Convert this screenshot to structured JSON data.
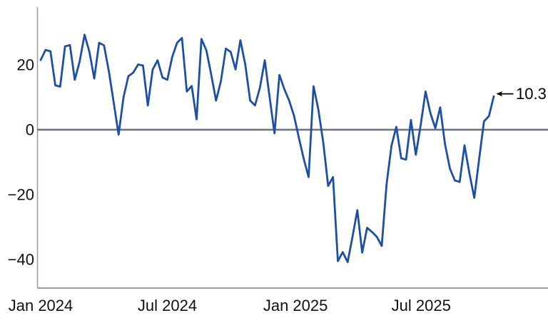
{
  "figure": {
    "background": "#ffffff",
    "annotation": {
      "text": "10.3",
      "points_to": "last-point",
      "color": "#000000"
    }
  },
  "chart_data": {
    "type": "line",
    "title": "",
    "x_unit": "weekly points starting Jan 2024",
    "x_ticks": [
      {
        "label": "Jan 2024",
        "week": 0
      },
      {
        "label": "Jul 2024",
        "week": 26
      },
      {
        "label": "Jan 2025",
        "week": 52.3
      },
      {
        "label": "Jul 2025",
        "week": 78.1
      }
    ],
    "y_ticks": [
      {
        "label": "20",
        "value": 20
      },
      {
        "label": "0",
        "value": 0
      },
      {
        "label": "−20",
        "value": -20
      },
      {
        "label": "−40",
        "value": -40
      }
    ],
    "ylim": [
      -48.8,
      37.8
    ],
    "grid": false,
    "legend": false,
    "zero_line": true,
    "last_value_label": "10.3",
    "values": [
      21.5,
      24.6,
      24.2,
      13.7,
      13.3,
      25.7,
      26.1,
      15.4,
      21.0,
      29.3,
      24.0,
      15.8,
      26.8,
      26.0,
      18.0,
      8.3,
      -1.5,
      10.0,
      16.5,
      17.6,
      20.1,
      19.8,
      7.5,
      18.6,
      21.4,
      16.1,
      15.4,
      22.5,
      26.8,
      28.3,
      11.8,
      13.5,
      3.2,
      28.0,
      24.5,
      17.0,
      9.0,
      15.0,
      25.0,
      24.0,
      18.6,
      27.6,
      20.0,
      9.0,
      7.5,
      13.0,
      21.4,
      10.0,
      -1.1,
      16.9,
      12.6,
      9.0,
      4.3,
      -2.5,
      -9.0,
      -14.6,
      13.4,
      6.2,
      -3.9,
      -17.3,
      -14.6,
      -40.5,
      -37.7,
      -40.8,
      -33.0,
      -24.8,
      -37.9,
      -30.2,
      -31.5,
      -33.0,
      -35.8,
      -16.7,
      -5.0,
      0.9,
      -8.8,
      -9.2,
      3.0,
      -7.7,
      1.5,
      11.8,
      5.1,
      0.5,
      6.9,
      -4.5,
      -12.0,
      -15.6,
      -16.1,
      -4.8,
      -13.5,
      -21.0,
      -9.0,
      2.6,
      4.2,
      10.3
    ],
    "colors": {
      "line": "#1d4fa8",
      "zero_line": "#6b7682",
      "axis": "#989da3",
      "tick_label": "#111111"
    }
  }
}
